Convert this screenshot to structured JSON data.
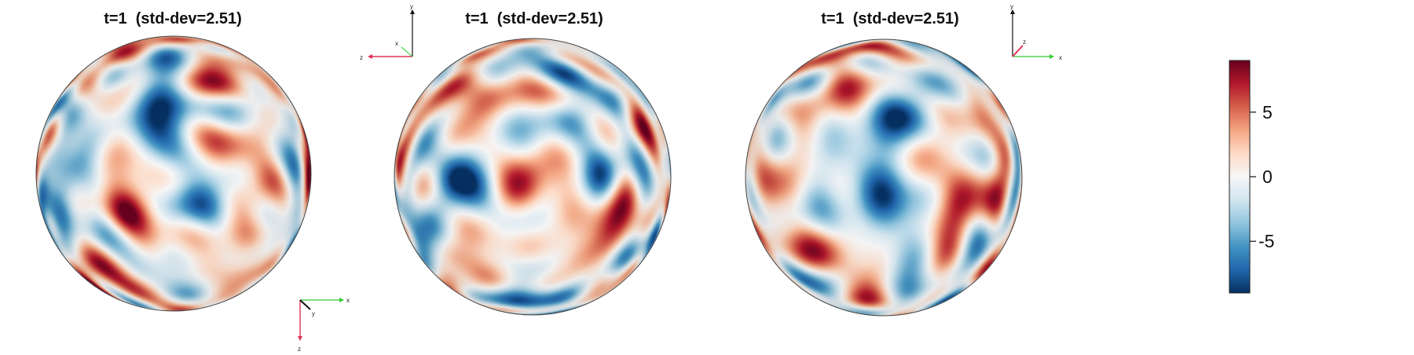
{
  "panels": [
    {
      "title": "t=1  (std-dev=2.51)",
      "seed": 11
    },
    {
      "title": "t=1  (std-dev=2.51)",
      "seed": 29
    },
    {
      "title": "t=1  (std-dev=2.51)",
      "seed": 47
    }
  ],
  "axes_triads": [
    {
      "labels": {
        "h": "x",
        "v": "z",
        "d": "y"
      }
    },
    {
      "labels": {
        "h": "z",
        "v": "y",
        "d": "x"
      }
    },
    {
      "labels": {
        "h": "x",
        "v": "y",
        "d": "z"
      }
    }
  ],
  "colorbar": {
    "ticks": [
      "5",
      "0",
      "-5"
    ],
    "tick_values": [
      5,
      0,
      -5
    ],
    "range": [
      -9,
      9
    ],
    "colors": [
      "#053061",
      "#2166ac",
      "#4393c3",
      "#92c5de",
      "#d1e5f0",
      "#f7f7f7",
      "#fddbc7",
      "#f4a582",
      "#d6604d",
      "#b2182b",
      "#67001f"
    ]
  },
  "axis_colors": {
    "x": "#33cc33",
    "y": "#111111",
    "z": "#dd3355"
  }
}
